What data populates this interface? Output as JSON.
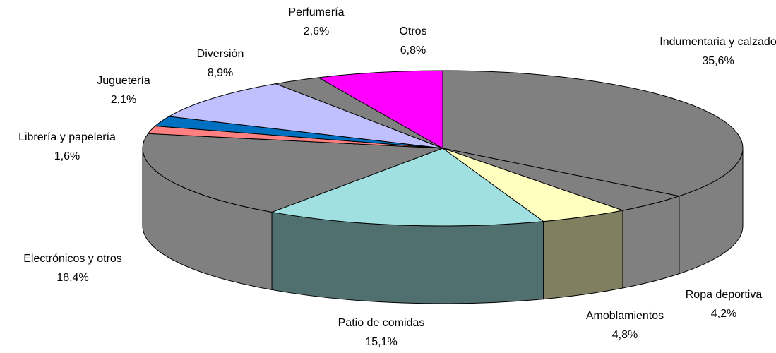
{
  "chart_data": {
    "type": "pie",
    "categories": [
      "Indumentaria y calzado",
      "Ropa deportiva",
      "Amoblamientos",
      "Patio de comidas",
      "Electrónicos y otros",
      "Librería y papelería",
      "Juguetería",
      "Diversión",
      "Perfumería",
      "Otros"
    ],
    "values": [
      35.6,
      4.2,
      4.8,
      15.1,
      18.4,
      1.6,
      2.1,
      8.9,
      2.6,
      6.8
    ],
    "value_labels": [
      "35,6%",
      "4,2%",
      "4,8%",
      "15,1%",
      "18,4%",
      "1,6%",
      "2,1%",
      "8,9%",
      "2,6%",
      "6,8%"
    ],
    "colors": [
      "#808080",
      "#808080",
      "#ffffc0",
      "#a0e0e0",
      "#808080",
      "#ff8080",
      "#0070c0",
      "#c0c0ff",
      "#808080",
      "#ff00ff"
    ],
    "side_colors": [
      "#808080",
      "#808080",
      "#808060",
      "#507070",
      "#808080",
      "#804040",
      "#003860",
      "#606080",
      "#808080",
      "#800080"
    ]
  }
}
